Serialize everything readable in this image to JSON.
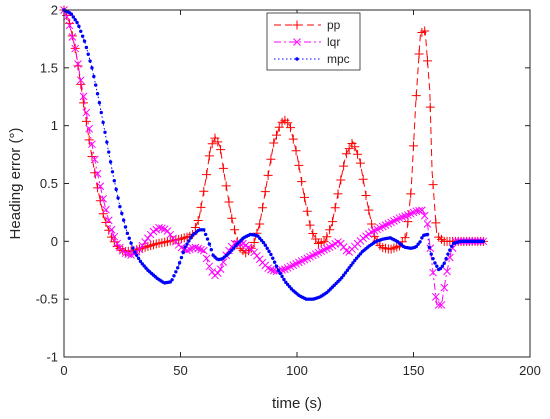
{
  "chart_data": {
    "type": "line",
    "title": "",
    "xlabel": "time (s)",
    "ylabel": "Heading error (°)",
    "xlim": [
      0,
      200
    ],
    "ylim": [
      -1,
      2
    ],
    "xticks": [
      "0",
      "50",
      "100",
      "150",
      "200"
    ],
    "yticks": [
      "-1",
      "-0.5",
      "0",
      "0.5",
      "1",
      "1.5",
      "2"
    ],
    "grid": false,
    "legend_position": "top-right",
    "series": [
      {
        "name": "pp",
        "color": "#ff0000",
        "marker": "plus",
        "line": "dashed",
        "points": [
          [
            0,
            2
          ],
          [
            2,
            1.92
          ],
          [
            5,
            1.65
          ],
          [
            8,
            1.25
          ],
          [
            11,
            0.85
          ],
          [
            14,
            0.5
          ],
          [
            17,
            0.22
          ],
          [
            20,
            0.05
          ],
          [
            23,
            -0.05
          ],
          [
            26,
            -0.09
          ],
          [
            30,
            -0.08
          ],
          [
            35,
            -0.05
          ],
          [
            40,
            -0.02
          ],
          [
            45,
            0
          ],
          [
            50,
            0.02
          ],
          [
            55,
            0.05
          ],
          [
            58,
            0.2
          ],
          [
            61,
            0.55
          ],
          [
            63,
            0.82
          ],
          [
            65,
            0.9
          ],
          [
            67,
            0.82
          ],
          [
            69,
            0.55
          ],
          [
            72,
            0.2
          ],
          [
            75,
            -0.05
          ],
          [
            78,
            -0.1
          ],
          [
            81,
            -0.05
          ],
          [
            84,
            0.15
          ],
          [
            87,
            0.5
          ],
          [
            90,
            0.85
          ],
          [
            93,
            1.02
          ],
          [
            95,
            1.05
          ],
          [
            97,
            1.0
          ],
          [
            100,
            0.75
          ],
          [
            103,
            0.4
          ],
          [
            106,
            0.1
          ],
          [
            109,
            -0.02
          ],
          [
            112,
            0
          ],
          [
            115,
            0.15
          ],
          [
            118,
            0.45
          ],
          [
            121,
            0.75
          ],
          [
            124,
            0.86
          ],
          [
            127,
            0.7
          ],
          [
            130,
            0.35
          ],
          [
            133,
            0.05
          ],
          [
            136,
            -0.05
          ],
          [
            140,
            -0.07
          ],
          [
            144,
            -0.04
          ],
          [
            147,
            0.05
          ],
          [
            149,
            0.45
          ],
          [
            151,
            1.2
          ],
          [
            153,
            1.8
          ],
          [
            155,
            1.82
          ],
          [
            157,
            1.3
          ],
          [
            158,
            0.6
          ],
          [
            160,
            0.05
          ],
          [
            163,
            0
          ],
          [
            170,
            0
          ],
          [
            180,
            0
          ]
        ]
      },
      {
        "name": "lqr",
        "color": "#ff00ff",
        "marker": "x",
        "line": "dashdot",
        "points": [
          [
            0,
            2
          ],
          [
            2,
            1.9
          ],
          [
            5,
            1.65
          ],
          [
            8,
            1.3
          ],
          [
            11,
            0.95
          ],
          [
            14,
            0.62
          ],
          [
            17,
            0.35
          ],
          [
            20,
            0.12
          ],
          [
            23,
            -0.03
          ],
          [
            26,
            -0.1
          ],
          [
            29,
            -0.12
          ],
          [
            32,
            -0.08
          ],
          [
            35,
            0
          ],
          [
            38,
            0.08
          ],
          [
            41,
            0.12
          ],
          [
            44,
            0.1
          ],
          [
            47,
            0.02
          ],
          [
            50,
            -0.05
          ],
          [
            53,
            -0.08
          ],
          [
            56,
            -0.05
          ],
          [
            60,
            -0.08
          ],
          [
            63,
            -0.25
          ],
          [
            65,
            -0.3
          ],
          [
            67,
            -0.25
          ],
          [
            70,
            -0.1
          ],
          [
            73,
            -0.02
          ],
          [
            77,
            -0.02
          ],
          [
            81,
            -0.08
          ],
          [
            85,
            -0.18
          ],
          [
            88,
            -0.24
          ],
          [
            91,
            -0.26
          ],
          [
            95,
            -0.24
          ],
          [
            99,
            -0.2
          ],
          [
            103,
            -0.16
          ],
          [
            107,
            -0.12
          ],
          [
            111,
            -0.08
          ],
          [
            115,
            -0.04
          ],
          [
            118,
            0
          ],
          [
            120,
            -0.05
          ],
          [
            122,
            -0.1
          ],
          [
            125,
            -0.04
          ],
          [
            128,
            0.02
          ],
          [
            132,
            0.08
          ],
          [
            136,
            0.12
          ],
          [
            140,
            0.16
          ],
          [
            144,
            0.2
          ],
          [
            148,
            0.23
          ],
          [
            151,
            0.26
          ],
          [
            154,
            0.27
          ],
          [
            156,
            0.15
          ],
          [
            158,
            -0.2
          ],
          [
            160,
            -0.55
          ],
          [
            162,
            -0.55
          ],
          [
            164,
            -0.3
          ],
          [
            166,
            -0.1
          ],
          [
            168,
            0
          ],
          [
            172,
            0
          ],
          [
            180,
            0
          ]
        ]
      },
      {
        "name": "mpc",
        "color": "#0000ff",
        "marker": "dot",
        "line": "dotted",
        "points": [
          [
            0,
            2
          ],
          [
            3,
            1.97
          ],
          [
            6,
            1.88
          ],
          [
            9,
            1.72
          ],
          [
            12,
            1.5
          ],
          [
            15,
            1.22
          ],
          [
            18,
            0.9
          ],
          [
            21,
            0.58
          ],
          [
            24,
            0.3
          ],
          [
            27,
            0.08
          ],
          [
            30,
            -0.08
          ],
          [
            33,
            -0.18
          ],
          [
            36,
            -0.25
          ],
          [
            40,
            -0.32
          ],
          [
            43,
            -0.36
          ],
          [
            46,
            -0.35
          ],
          [
            49,
            -0.22
          ],
          [
            52,
            -0.05
          ],
          [
            55,
            0.05
          ],
          [
            58,
            0.1
          ],
          [
            60,
            0.1
          ],
          [
            62,
            0
          ],
          [
            64,
            -0.12
          ],
          [
            66,
            -0.16
          ],
          [
            68,
            -0.15
          ],
          [
            71,
            -0.1
          ],
          [
            74,
            -0.03
          ],
          [
            77,
            0.03
          ],
          [
            80,
            0.06
          ],
          [
            83,
            0.05
          ],
          [
            86,
            -0.02
          ],
          [
            89,
            -0.12
          ],
          [
            92,
            -0.25
          ],
          [
            95,
            -0.35
          ],
          [
            98,
            -0.42
          ],
          [
            101,
            -0.47
          ],
          [
            104,
            -0.5
          ],
          [
            107,
            -0.5
          ],
          [
            110,
            -0.48
          ],
          [
            113,
            -0.44
          ],
          [
            116,
            -0.38
          ],
          [
            119,
            -0.32
          ],
          [
            122,
            -0.24
          ],
          [
            125,
            -0.16
          ],
          [
            128,
            -0.09
          ],
          [
            131,
            -0.04
          ],
          [
            134,
            0
          ],
          [
            137,
            0.02
          ],
          [
            140,
            0.03
          ],
          [
            143,
            0
          ],
          [
            146,
            -0.05
          ],
          [
            149,
            -0.06
          ],
          [
            151,
            -0.05
          ],
          [
            153,
            0
          ],
          [
            154,
            0.05
          ],
          [
            156,
            0.06
          ],
          [
            157,
            -0.08
          ],
          [
            159,
            -0.18
          ],
          [
            161,
            -0.25
          ],
          [
            163,
            -0.2
          ],
          [
            165,
            -0.1
          ],
          [
            167,
            -0.02
          ],
          [
            170,
            0
          ],
          [
            180,
            0
          ]
        ]
      }
    ]
  }
}
